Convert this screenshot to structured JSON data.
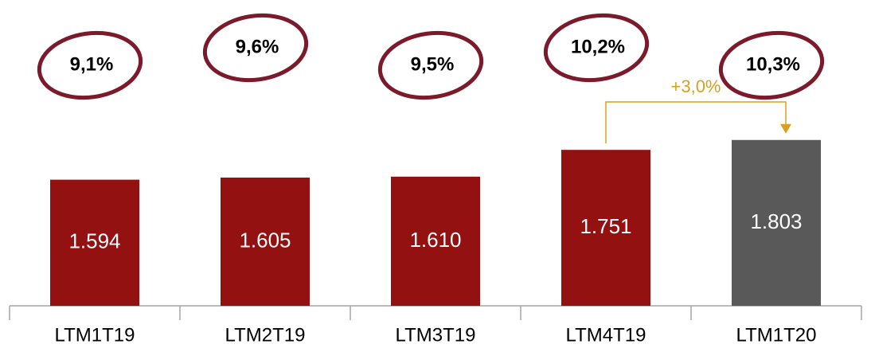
{
  "chart_data": {
    "type": "bar",
    "categories": [
      "LTM1T19",
      "LTM2T19",
      "LTM3T19",
      "LTM4T19",
      "LTM1T20"
    ],
    "values": [
      1594,
      1605,
      1610,
      1751,
      1803
    ],
    "value_labels": [
      "1.594",
      "1.605",
      "1.610",
      "1.751",
      "1.803"
    ],
    "colors": [
      "#941111",
      "#941111",
      "#941111",
      "#941111",
      "#595959"
    ],
    "ratios": {
      "values": [
        9.1,
        9.6,
        9.5,
        10.2,
        10.3
      ],
      "value_labels": [
        "9,1%",
        "9,6%",
        "9,5%",
        "10,2%",
        "10,3%"
      ],
      "color": "#7b1a2a"
    },
    "annotation": "+3,0%",
    "annotation_color": "#d9a020",
    "ylim": [
      930,
      2540
    ]
  }
}
